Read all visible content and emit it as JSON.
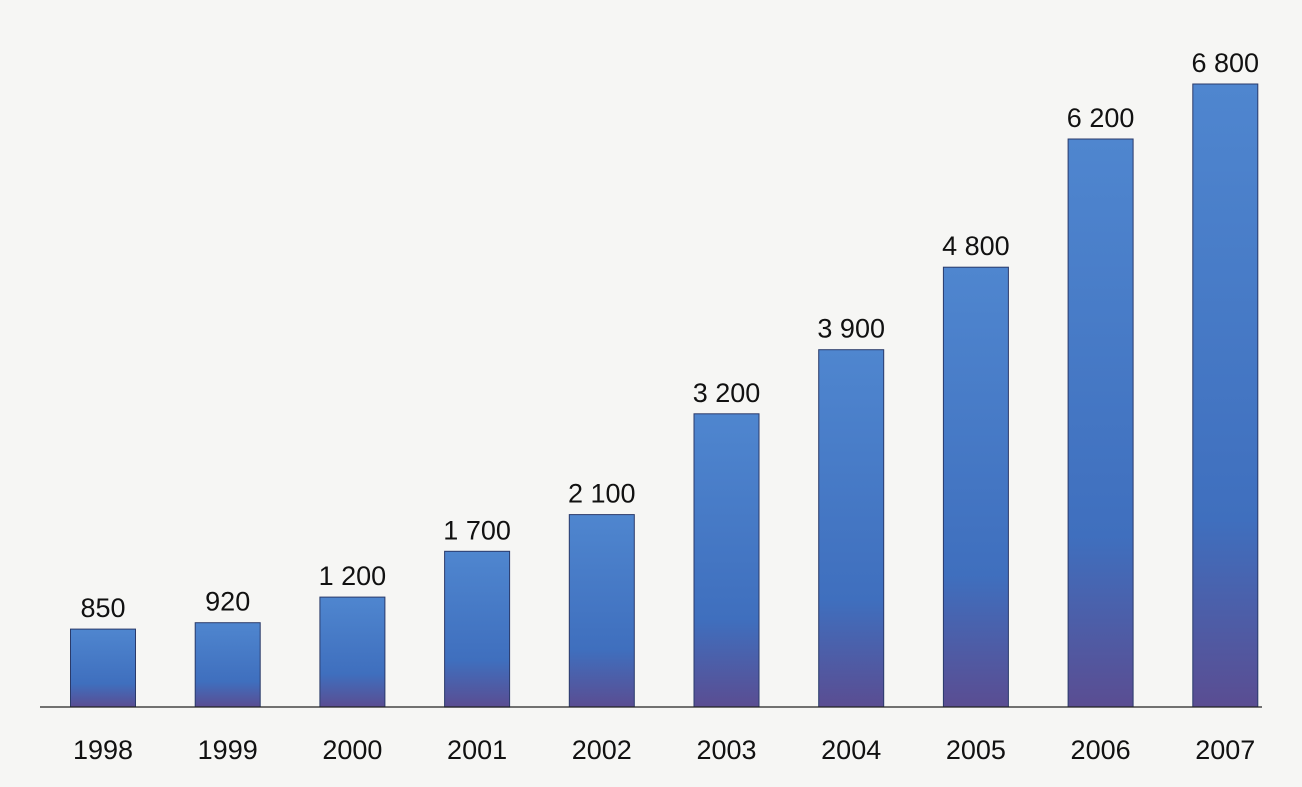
{
  "chart_data": {
    "type": "bar",
    "categories": [
      "1998",
      "1999",
      "2000",
      "2001",
      "2002",
      "2003",
      "2004",
      "2005",
      "2006",
      "2007"
    ],
    "values": [
      850,
      920,
      1200,
      1700,
      2100,
      3200,
      3900,
      4800,
      6200,
      6800
    ],
    "value_labels": [
      "850",
      "920",
      "1 200",
      "1 700",
      "2 100",
      "3 200",
      "3 900",
      "4 800",
      "6 200",
      "6 800"
    ],
    "title": "",
    "xlabel": "",
    "ylabel": "",
    "ylim": [
      0,
      7000
    ],
    "grid": false,
    "legend": "none",
    "colors": {
      "bar_top": "#4f86cf",
      "bar_mid": "#3f6fbe",
      "bar_bottom": "#5a4d92",
      "bar_outline": "#2a3a6a"
    }
  }
}
